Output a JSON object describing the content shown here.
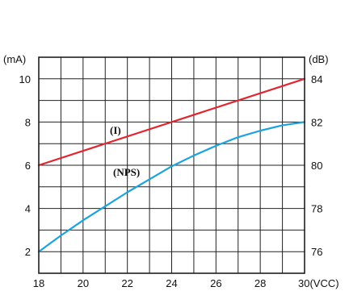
{
  "chart_data": {
    "type": "line",
    "title": "",
    "x_unit_label": "(VCC)",
    "left_unit_label": "(mA)",
    "right_unit_label": "(dB)",
    "xlim": [
      18,
      30
    ],
    "ylim_left": [
      1,
      11
    ],
    "ylim_right": [
      75,
      85
    ],
    "x_ticks": [
      18,
      20,
      22,
      24,
      26,
      28,
      30
    ],
    "left_ticks": [
      2,
      4,
      6,
      8,
      10
    ],
    "right_ticks": [
      76,
      78,
      80,
      82,
      84
    ],
    "grid": true,
    "series": [
      {
        "name": "(I)",
        "axis": "left",
        "color": "#e0262f",
        "x": [
          18,
          30
        ],
        "y": [
          6,
          10
        ]
      },
      {
        "name": "(NPS)",
        "axis": "right",
        "color": "#1ba3dd",
        "x": [
          18,
          19,
          20,
          21,
          22,
          23,
          24,
          25,
          26,
          27,
          28,
          29,
          30
        ],
        "y": [
          76,
          76.75,
          77.45,
          78.1,
          78.75,
          79.35,
          79.95,
          80.45,
          80.9,
          81.3,
          81.6,
          81.85,
          82
        ]
      }
    ]
  }
}
